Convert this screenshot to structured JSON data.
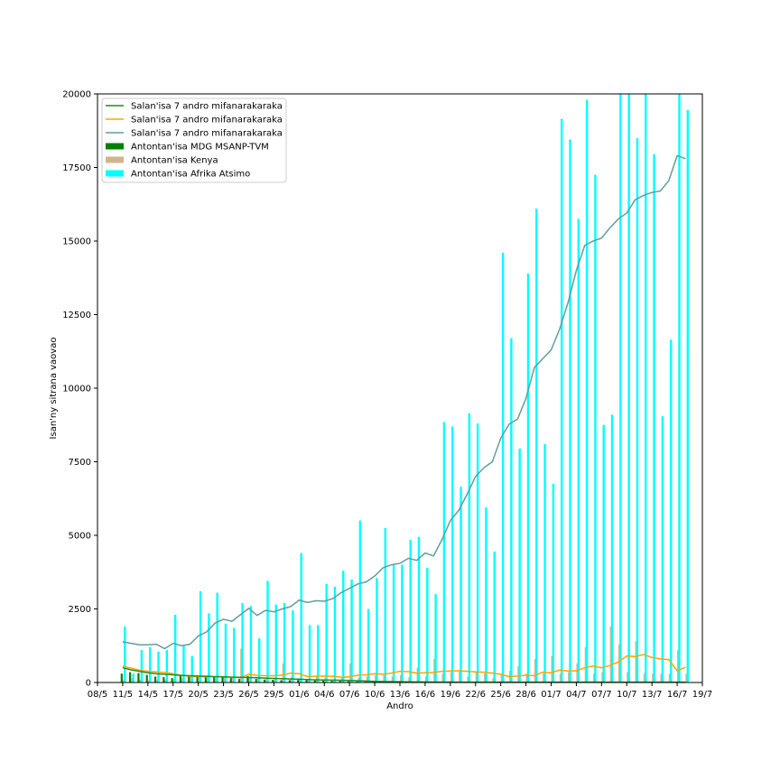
{
  "chart_data": {
    "type": "bar",
    "xlabel": "Andro",
    "ylabel": "Isan'ny sitrana vaovao",
    "ylim": [
      0,
      20000
    ],
    "xlim": [
      "2020-05-08",
      "2020-07-19"
    ],
    "x_ticks": [
      "08/5",
      "11/5",
      "14/5",
      "17/5",
      "20/5",
      "23/5",
      "26/5",
      "29/5",
      "01/6",
      "04/6",
      "07/6",
      "10/6",
      "13/6",
      "16/6",
      "19/6",
      "22/6",
      "25/6",
      "28/6",
      "01/7",
      "04/7",
      "07/7",
      "10/7",
      "13/7",
      "16/7",
      "19/7"
    ],
    "y_ticks": [
      "0",
      "2500",
      "5000",
      "7500",
      "10000",
      "12500",
      "15000",
      "17500",
      "20000"
    ],
    "legend_position": "upper-left",
    "colors": {
      "mdg_bar": "#008000",
      "kenya_bar": "#d2b48c",
      "sa_bar": "#00ffff",
      "mdg_line": "#228b22",
      "kenya_line": "#ffa500",
      "sa_line": "#5f9ea0"
    },
    "legend": [
      {
        "label": "Salan'isa 7 andro mifanarakaraka",
        "kind": "line",
        "color": "#228b22"
      },
      {
        "label": "Salan'isa 7 andro mifanarakaraka",
        "kind": "line",
        "color": "#ffa500"
      },
      {
        "label": "Salan'isa 7 andro mifanarakaraka",
        "kind": "line",
        "color": "#5f9ea0"
      },
      {
        "label": "Antontan'isa MDG MSANP-TVM",
        "kind": "bar",
        "color": "#008000"
      },
      {
        "label": "Antontan'isa Kenya",
        "kind": "bar",
        "color": "#d2b48c"
      },
      {
        "label": "Antontan'isa Afrika Atsimo",
        "kind": "bar",
        "color": "#00ffff"
      }
    ],
    "dates": [
      "2020-05-11",
      "2020-05-12",
      "2020-05-13",
      "2020-05-14",
      "2020-05-15",
      "2020-05-16",
      "2020-05-17",
      "2020-05-18",
      "2020-05-19",
      "2020-05-20",
      "2020-05-21",
      "2020-05-22",
      "2020-05-23",
      "2020-05-24",
      "2020-05-25",
      "2020-05-26",
      "2020-05-27",
      "2020-05-28",
      "2020-05-29",
      "2020-05-30",
      "2020-05-31",
      "2020-06-01",
      "2020-06-02",
      "2020-06-03",
      "2020-06-04",
      "2020-06-05",
      "2020-06-06",
      "2020-06-07",
      "2020-06-08",
      "2020-06-09",
      "2020-06-10",
      "2020-06-11",
      "2020-06-12",
      "2020-06-13",
      "2020-06-14",
      "2020-06-15",
      "2020-06-16",
      "2020-06-17",
      "2020-06-18",
      "2020-06-19",
      "2020-06-20",
      "2020-06-21",
      "2020-06-22",
      "2020-06-23",
      "2020-06-24",
      "2020-06-25",
      "2020-06-26",
      "2020-06-27",
      "2020-06-28",
      "2020-06-29",
      "2020-06-30",
      "2020-07-01",
      "2020-07-02",
      "2020-07-03",
      "2020-07-04",
      "2020-07-05",
      "2020-07-06",
      "2020-07-07",
      "2020-07-08",
      "2020-07-09",
      "2020-07-10",
      "2020-07-11",
      "2020-07-12",
      "2020-07-13",
      "2020-07-14",
      "2020-07-15",
      "2020-07-16",
      "2020-07-17"
    ],
    "series": [
      {
        "key": "mdg_bars",
        "kind": "bar",
        "values": [
          300,
          350,
          320,
          260,
          200,
          180,
          150,
          240,
          230,
          220,
          210,
          200,
          170,
          150,
          120,
          220,
          120,
          100,
          90,
          80,
          80,
          90,
          80,
          70,
          60,
          50,
          50,
          40,
          30,
          25,
          20,
          20,
          20,
          15,
          15,
          15,
          10,
          10,
          10,
          10,
          10,
          10,
          10,
          10,
          10,
          10,
          10,
          10,
          10,
          10,
          10,
          10,
          10,
          10,
          10,
          10,
          10,
          10,
          10,
          10,
          10,
          10,
          10,
          10,
          10,
          10,
          10,
          10
        ]
      },
      {
        "key": "kenya_bars",
        "kind": "bar",
        "values": [
          100,
          150,
          100,
          80,
          90,
          100,
          120,
          150,
          200,
          180,
          200,
          220,
          180,
          150,
          1150,
          200,
          200,
          150,
          120,
          650,
          200,
          150,
          100,
          200,
          150,
          100,
          180,
          650,
          150,
          200,
          250,
          250,
          200,
          250,
          180,
          500,
          200,
          800,
          300,
          350,
          400,
          200,
          350,
          300,
          150,
          250,
          400,
          550,
          300,
          800,
          300,
          900,
          300,
          350,
          650,
          1200,
          300,
          350,
          1900,
          1300,
          350,
          1400,
          300,
          300,
          300,
          300,
          1100,
          300
        ]
      },
      {
        "key": "sa_bars",
        "kind": "bar",
        "values": [
          1900,
          300,
          1100,
          1200,
          1050,
          1100,
          2300,
          1250,
          900,
          3100,
          2350,
          3050,
          2000,
          1850,
          2700,
          2600,
          1500,
          3450,
          2650,
          2700,
          2450,
          4400,
          1950,
          1950,
          3350,
          3250,
          3800,
          3500,
          5500,
          2500,
          3550,
          5250,
          4000,
          4000,
          4850,
          4950,
          3900,
          3000,
          8850,
          8700,
          6650,
          9150,
          8800,
          5950,
          4450,
          14600,
          11700,
          7950,
          13900,
          16100,
          8100,
          6750,
          19150,
          18450,
          15750,
          19800,
          17250,
          8750,
          9100,
          20000,
          20000,
          18500,
          20000,
          17950,
          9050,
          11650,
          20000,
          19450
        ]
      },
      {
        "key": "mdg_line",
        "kind": "line",
        "values": [
          500,
          430,
          380,
          330,
          300,
          280,
          260,
          240,
          230,
          220,
          210,
          200,
          190,
          180,
          175,
          170,
          160,
          150,
          140,
          130,
          120,
          110,
          100,
          90,
          85,
          80,
          75,
          70,
          60,
          50,
          40,
          35,
          30,
          25,
          22,
          20,
          18,
          16,
          15,
          14,
          13,
          12,
          12,
          12,
          12,
          12,
          12,
          12,
          12,
          12,
          12,
          12,
          12,
          12,
          12,
          12,
          12,
          12,
          12,
          12,
          12,
          12,
          12,
          12,
          12,
          12,
          12,
          12
        ]
      },
      {
        "key": "kenya_line",
        "kind": "line",
        "values": [
          550,
          490,
          420,
          380,
          360,
          340,
          300,
          240,
          210,
          200,
          190,
          190,
          200,
          180,
          160,
          280,
          240,
          230,
          230,
          250,
          320,
          300,
          200,
          210,
          220,
          210,
          180,
          190,
          250,
          260,
          300,
          280,
          320,
          380,
          370,
          320,
          330,
          340,
          380,
          390,
          400,
          380,
          360,
          350,
          320,
          280,
          200,
          220,
          250,
          230,
          350,
          330,
          420,
          390,
          400,
          500,
          560,
          500,
          580,
          700,
          900,
          880,
          950,
          850,
          800,
          780,
          400,
          520
        ]
      },
      {
        "key": "sa_line",
        "kind": "line",
        "values": [
          1380,
          1330,
          1280,
          1280,
          1300,
          1150,
          1330,
          1250,
          1300,
          1580,
          1720,
          2020,
          2150,
          2080,
          2300,
          2520,
          2280,
          2450,
          2400,
          2500,
          2580,
          2800,
          2720,
          2780,
          2760,
          2850,
          3050,
          3200,
          3350,
          3420,
          3620,
          3900,
          4000,
          4050,
          4220,
          4150,
          4400,
          4300,
          4850,
          5500,
          5850,
          6400,
          7000,
          7300,
          7500,
          8300,
          8780,
          8950,
          9650,
          10700,
          11000,
          11300,
          12000,
          12900,
          14000,
          14850,
          15000,
          15100,
          15450,
          15750,
          15950,
          16400,
          16550,
          16650,
          16700,
          17050,
          17900,
          17800
        ]
      }
    ]
  }
}
